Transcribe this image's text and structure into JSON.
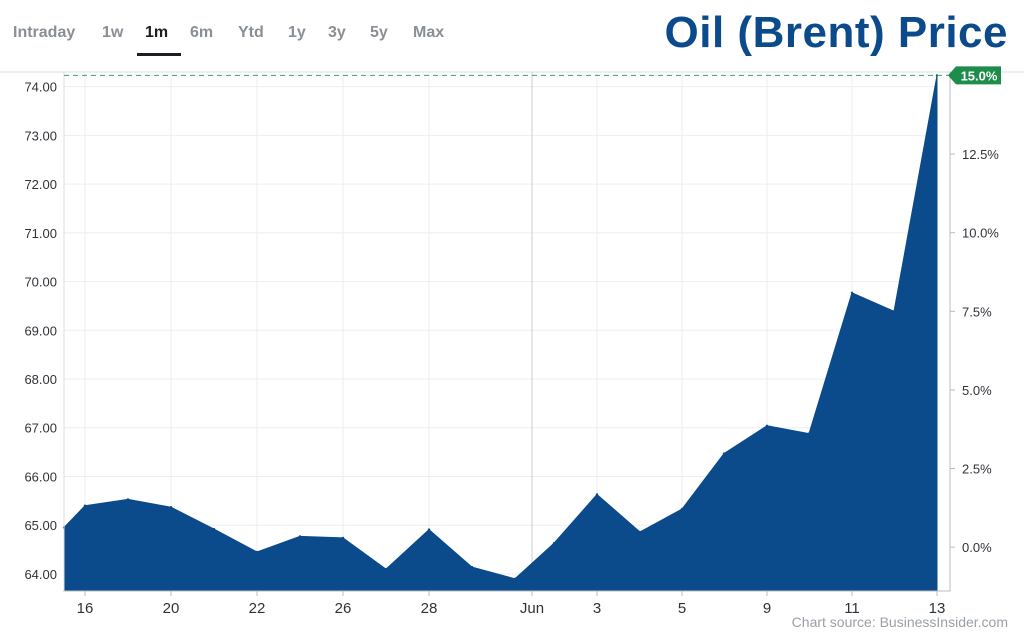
{
  "tabs": [
    {
      "label": "Intraday",
      "active": false
    },
    {
      "label": "1w",
      "active": false
    },
    {
      "label": "1m",
      "active": true
    },
    {
      "label": "6m",
      "active": false
    },
    {
      "label": "Ytd",
      "active": false
    },
    {
      "label": "1y",
      "active": false
    },
    {
      "label": "3y",
      "active": false
    },
    {
      "label": "5y",
      "active": false
    },
    {
      "label": "Max",
      "active": false
    }
  ],
  "source_label": "Chart source: BusinessInsider.com",
  "colors": {
    "accent": "#0b4a8b",
    "area": "#0b4a8b",
    "badge": "#1e8c4a",
    "reference_line": "#3aa06a"
  },
  "chart_data": {
    "type": "area",
    "title": "Oil (Brent) Price",
    "xlabel": "",
    "ylabel": "",
    "x_tick_labels": [
      "16",
      "20",
      "22",
      "26",
      "28",
      "Jun",
      "3",
      "5",
      "9",
      "11",
      "13"
    ],
    "y_ticks": [
      "64.00",
      "65.00",
      "66.00",
      "67.00",
      "68.00",
      "69.00",
      "70.00",
      "71.00",
      "72.00",
      "73.00",
      "74.00"
    ],
    "y_right_ticks": [
      "0.0%",
      "2.5%",
      "5.0%",
      "7.5%",
      "10.0%",
      "12.5%"
    ],
    "last_change_label": "15.0%",
    "ylim": [
      63.65,
      74.3
    ],
    "grid": true,
    "series": [
      {
        "x": [
          "May 15",
          "May 16",
          "May 19",
          "May 20",
          "May 21",
          "May 22",
          "May 23",
          "May 26",
          "May 27",
          "May 28",
          "May 29",
          "May 30",
          "Jun 2",
          "Jun 3",
          "Jun 4",
          "Jun 5",
          "Jun 6",
          "Jun 9",
          "Jun 10",
          "Jun 11",
          "Jun 12",
          "Jun 13"
        ],
        "values": [
          64.95,
          65.4,
          65.53,
          65.37,
          64.92,
          64.45,
          64.77,
          64.74,
          64.1,
          64.91,
          64.14,
          63.9,
          64.63,
          65.63,
          64.86,
          65.33,
          66.47,
          67.04,
          66.88,
          69.77,
          69.39,
          74.23
        ]
      }
    ]
  }
}
